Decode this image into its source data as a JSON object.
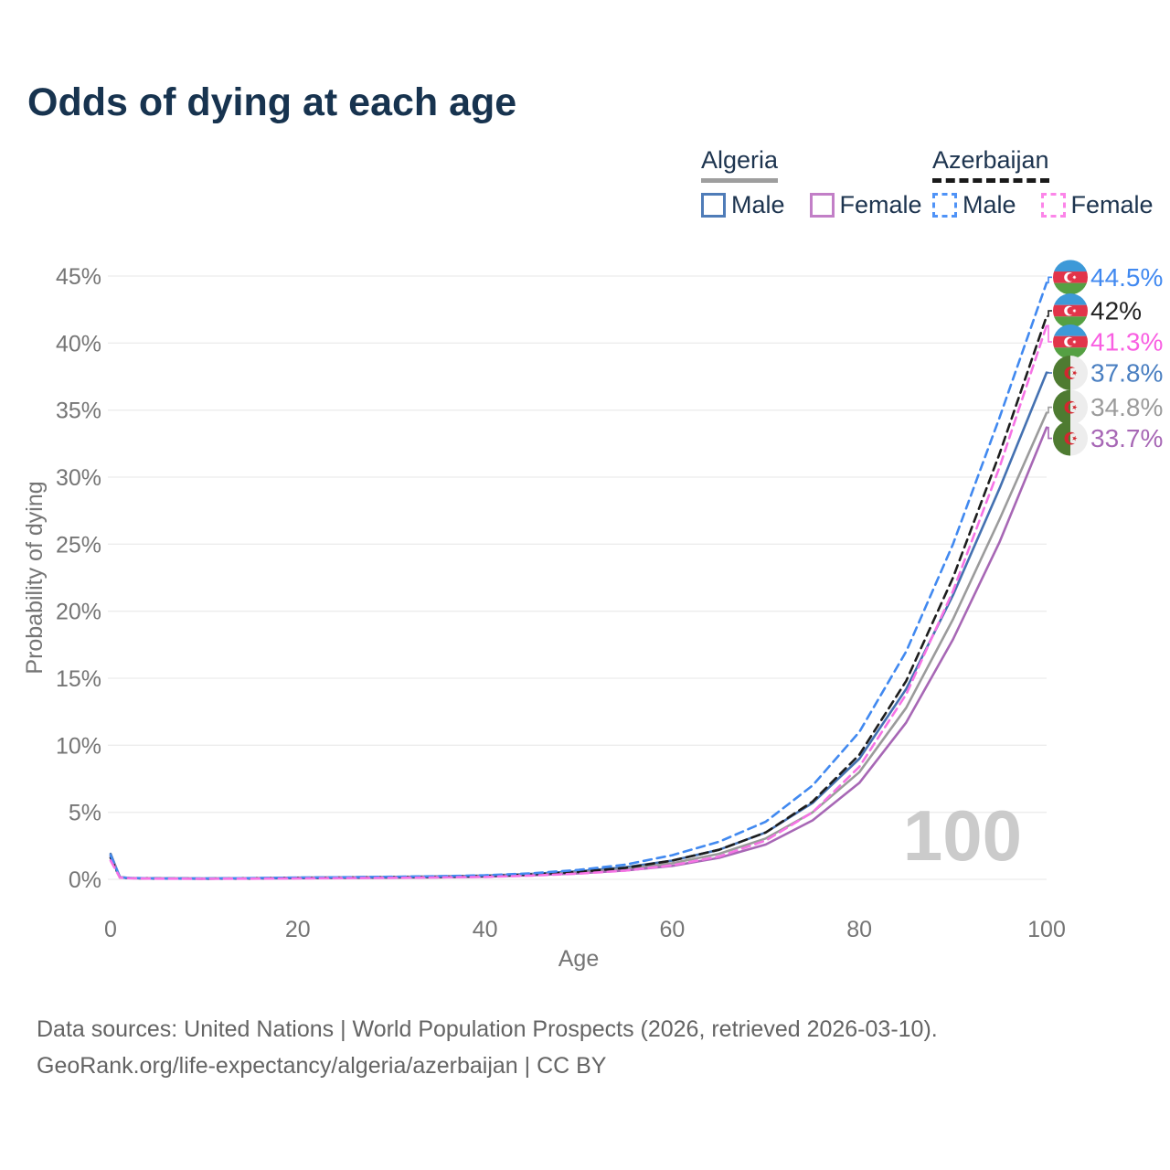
{
  "title": "Odds of dying at each age",
  "legend": {
    "groups": [
      {
        "country": "Algeria",
        "line_style": "solid",
        "underline_color": "#9e9e9e",
        "items": [
          {
            "label": "Male",
            "color": "#4f7cb8"
          },
          {
            "label": "Female",
            "color": "#c27fc7"
          }
        ]
      },
      {
        "country": "Azerbaijan",
        "line_style": "dashed",
        "underline_color": "#1a1a1a",
        "items": [
          {
            "label": "Male",
            "color": "#4f93f7"
          },
          {
            "label": "Female",
            "color": "#fc85e9"
          }
        ]
      }
    ]
  },
  "chart_data": {
    "type": "line",
    "title": "Odds of dying at each age",
    "xlabel": "Age",
    "ylabel": "Probability of dying",
    "xlim": [
      0,
      100
    ],
    "ylim": [
      0,
      45
    ],
    "x_ticks": [
      0,
      20,
      40,
      60,
      80,
      100
    ],
    "y_ticks": [
      "0%",
      "5%",
      "10%",
      "15%",
      "20%",
      "25%",
      "30%",
      "35%",
      "40%",
      "45%"
    ],
    "grid": "horizontal",
    "watermark": "100",
    "ages": [
      0,
      1,
      2,
      5,
      10,
      15,
      20,
      25,
      30,
      35,
      40,
      45,
      50,
      55,
      60,
      65,
      70,
      75,
      80,
      85,
      90,
      95,
      100
    ],
    "series": [
      {
        "name": "Azerbaijan Male",
        "country": "Azerbaijan",
        "sex": "Male",
        "flag": "azerbaijan",
        "color": "#4189f0",
        "dashed": true,
        "end_label": "44.5%",
        "label_color": "#4189f0",
        "values": [
          1.8,
          0.15,
          0.1,
          0.07,
          0.06,
          0.09,
          0.13,
          0.16,
          0.19,
          0.23,
          0.3,
          0.45,
          0.7,
          1.1,
          1.8,
          2.8,
          4.3,
          7.0,
          11.0,
          17.0,
          25.0,
          34.5,
          44.5
        ]
      },
      {
        "name": "Azerbaijan Both sexes",
        "country": "Azerbaijan",
        "sex": "Both",
        "flag": "azerbaijan",
        "color": "#1d1d1d",
        "dashed": true,
        "end_label": "42%",
        "label_color": "#222222",
        "values": [
          1.6,
          0.13,
          0.09,
          0.06,
          0.05,
          0.07,
          0.1,
          0.13,
          0.15,
          0.18,
          0.24,
          0.36,
          0.55,
          0.85,
          1.4,
          2.2,
          3.5,
          5.8,
          9.3,
          14.8,
          22.5,
          31.8,
          42.0
        ]
      },
      {
        "name": "Azerbaijan Female",
        "country": "Azerbaijan",
        "sex": "Female",
        "flag": "azerbaijan",
        "color": "#f673e5",
        "dashed": true,
        "end_label": "41.3%",
        "label_color": "#f95fe2",
        "values": [
          1.4,
          0.12,
          0.08,
          0.05,
          0.04,
          0.05,
          0.07,
          0.09,
          0.11,
          0.14,
          0.18,
          0.28,
          0.42,
          0.65,
          1.05,
          1.7,
          2.9,
          5.0,
          8.4,
          13.8,
          21.5,
          30.8,
          41.3
        ]
      },
      {
        "name": "Algeria Male",
        "country": "Algeria",
        "sex": "Male",
        "flag": "algeria",
        "color": "#4471b1",
        "dashed": false,
        "end_label": "37.8%",
        "label_color": "#4a7fc1",
        "values": [
          1.9,
          0.16,
          0.1,
          0.07,
          0.06,
          0.08,
          0.12,
          0.15,
          0.18,
          0.22,
          0.28,
          0.4,
          0.6,
          0.9,
          1.4,
          2.2,
          3.5,
          5.7,
          9.0,
          14.2,
          21.2,
          29.2,
          37.8
        ]
      },
      {
        "name": "Algeria Both sexes",
        "country": "Algeria",
        "sex": "Both",
        "flag": "algeria",
        "color": "#9b9b9b",
        "dashed": false,
        "end_label": "34.8%",
        "label_color": "#9b9b9b",
        "values": [
          1.8,
          0.15,
          0.09,
          0.06,
          0.05,
          0.07,
          0.1,
          0.13,
          0.16,
          0.19,
          0.25,
          0.36,
          0.52,
          0.78,
          1.2,
          1.9,
          3.05,
          5.0,
          8.0,
          12.8,
          19.4,
          26.9,
          34.8
        ]
      },
      {
        "name": "Algeria Female",
        "country": "Algeria",
        "sex": "Female",
        "flag": "algeria",
        "color": "#a767b5",
        "dashed": false,
        "end_label": "33.7%",
        "label_color": "#a767b5",
        "values": [
          1.7,
          0.14,
          0.09,
          0.06,
          0.05,
          0.06,
          0.08,
          0.1,
          0.12,
          0.15,
          0.2,
          0.3,
          0.44,
          0.66,
          1.0,
          1.6,
          2.6,
          4.4,
          7.2,
          11.7,
          17.9,
          25.2,
          33.7
        ]
      }
    ]
  },
  "flag_colors": {
    "azerbaijan": {
      "blue": "#3d99d8",
      "red": "#e2344a",
      "green": "#55a043",
      "emblem": "#ffffff"
    },
    "algeria": {
      "green": "#4e7b31",
      "white": "#ededed",
      "emblem": "#d2272f"
    }
  },
  "footer": {
    "line1": "Data sources: United Nations | World Population Prospects (2026, retrieved 2026-03-10).",
    "line2": "GeoRank.org/life-expectancy/algeria/azerbaijan | CC BY"
  }
}
